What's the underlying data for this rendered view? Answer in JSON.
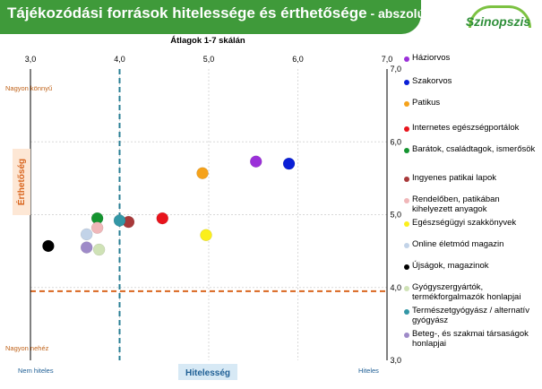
{
  "header": {
    "title": "Tájékozódási források hitelessége és érthetősége",
    "subtitle": " - abszolút",
    "logo": "Szinopszis"
  },
  "chart_data": {
    "type": "scatter",
    "title": "Átlagok 1-7 skálán",
    "xlabel": "Hitelesség",
    "ylabel": "Érthetőség",
    "xlim": [
      3.0,
      7.0
    ],
    "ylim": [
      3.0,
      7.0
    ],
    "x_ticks": [
      "3,0",
      "4,0",
      "5,0",
      "6,0",
      "7,0"
    ],
    "y_ticks": [
      "3,0",
      "4,0",
      "5,0",
      "6,0",
      "7,0"
    ],
    "x_ref": 4.0,
    "y_ref": 3.95,
    "grid": true,
    "corner_labels": {
      "top_left": "Nagyon könnyű",
      "bottom_left": "Nagyon nehéz",
      "x_left": "Nem hiteles",
      "x_right": "Hiteles"
    },
    "series": [
      {
        "name": "Háziorvos",
        "color": "#9b30d9",
        "x": 5.53,
        "y": 5.73
      },
      {
        "name": "Szakorvos",
        "color": "#0a1fd6",
        "x": 5.9,
        "y": 5.7
      },
      {
        "name": "Patikus",
        "color": "#f5a21b",
        "x": 4.93,
        "y": 5.57
      },
      {
        "name": "Internetes egészségportálok",
        "color": "#e8141c",
        "x": 4.48,
        "y": 4.95
      },
      {
        "name": "Barátok, családtagok, ismerősök",
        "color": "#159430",
        "x": 3.75,
        "y": 4.95
      },
      {
        "name": "Ingyenes patikai lapok",
        "color": "#a8393a",
        "x": 4.1,
        "y": 4.9
      },
      {
        "name": "Rendelőben, patikában kihelyezett anyagok",
        "color": "#f0b7b9",
        "x": 3.75,
        "y": 4.82
      },
      {
        "name": "Egészségügyi szakkönyvek",
        "color": "#fbef1c",
        "x": 4.97,
        "y": 4.72
      },
      {
        "name": "Online életmód magazin",
        "color": "#c2d3e8",
        "x": 3.63,
        "y": 4.73
      },
      {
        "name": "Újságok, magazinok",
        "color": "#000000",
        "x": 3.2,
        "y": 4.57
      },
      {
        "name": "Gyógyszergyártók, termékforgalmazók honlapjai",
        "color": "#cfe2b6",
        "x": 3.77,
        "y": 4.52
      },
      {
        "name": "Természetgyógyász / alternatív gyógyász",
        "color": "#3397a6",
        "x": 4.0,
        "y": 4.92
      },
      {
        "name": "Beteg-, és szakmai társaságok honlapjai",
        "color": "#9e8ac8",
        "x": 3.63,
        "y": 4.55
      }
    ]
  }
}
